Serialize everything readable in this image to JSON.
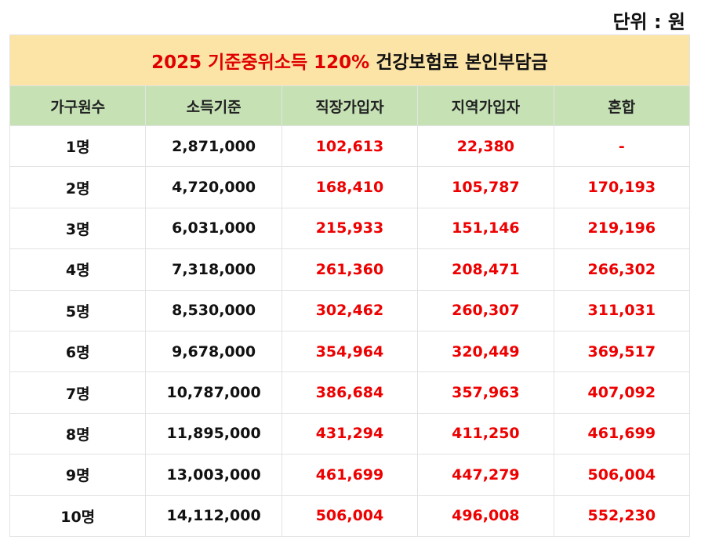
{
  "unit_label": "단위 : 원",
  "title": {
    "highlight": "2025 기준중위소득 120%",
    "rest": " 건강보험료 본인부담금"
  },
  "columns": [
    "가구원수",
    "소득기준",
    "직장가입자",
    "지역가입자",
    "혼합"
  ],
  "rows": [
    [
      "1명",
      "2,871,000",
      "102,613",
      "22,380",
      "-"
    ],
    [
      "2명",
      "4,720,000",
      "168,410",
      "105,787",
      "170,193"
    ],
    [
      "3명",
      "6,031,000",
      "215,933",
      "151,146",
      "219,196"
    ],
    [
      "4명",
      "7,318,000",
      "261,360",
      "208,471",
      "266,302"
    ],
    [
      "5명",
      "8,530,000",
      "302,462",
      "260,307",
      "311,031"
    ],
    [
      "6명",
      "9,678,000",
      "354,964",
      "320,449",
      "369,517"
    ],
    [
      "7명",
      "10,787,000",
      "386,684",
      "357,963",
      "407,092"
    ],
    [
      "8명",
      "11,895,000",
      "431,294",
      "411,250",
      "461,699"
    ],
    [
      "9명",
      "13,003,000",
      "461,699",
      "447,279",
      "506,004"
    ],
    [
      "10명",
      "14,112,000",
      "506,004",
      "496,008",
      "552,230"
    ]
  ]
}
